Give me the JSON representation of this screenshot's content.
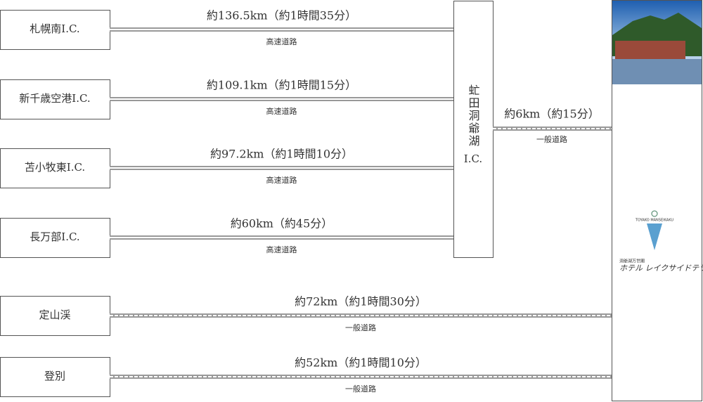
{
  "routes": [
    {
      "from": "札幌南I.C.",
      "distance": "約136.5km（約1時間35分）",
      "road": "高速道路"
    },
    {
      "from": "新千歳空港I.C.",
      "distance": "約109.1km（約1時間15分）",
      "road": "高速道路"
    },
    {
      "from": "苫小牧東I.C.",
      "distance": "約97.2km（約1時間10分）",
      "road": "高速道路"
    },
    {
      "from": "長万部I.C.",
      "distance": "約60km（約45分）",
      "road": "高速道路"
    },
    {
      "from": "定山渓",
      "distance": "約72km（約1時間30分）",
      "road": "一般道路"
    },
    {
      "from": "登別",
      "distance": "約52km（約1時間10分）",
      "road": "一般道路"
    }
  ],
  "ic": {
    "name": "虻田洞爺湖",
    "suffix": "I.C.",
    "distance": "約6km（約15分）",
    "road": "一般道路"
  },
  "hotel": {
    "logo_text": "TOYAKO MANSEIKAKU",
    "sub": "洞爺湖万世閣",
    "name": "ホテル レイクサイドテラス"
  }
}
